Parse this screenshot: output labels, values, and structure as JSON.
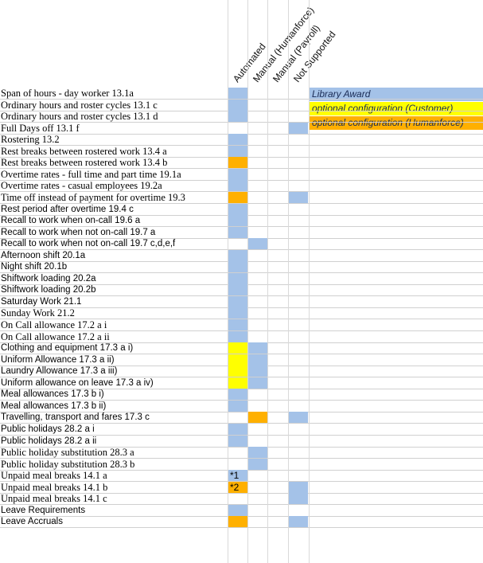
{
  "colors": {
    "blue": "#a4c2e8",
    "yellow": "#ffff00",
    "orange": "#ffb000"
  },
  "headers": [
    "Automated",
    "Manual (Humanforce)",
    "Manual (Payroll)",
    "Not Supported"
  ],
  "legend": [
    {
      "label": "Library Award",
      "color": "blue"
    },
    {
      "label": "optional configuration (Customer)",
      "color": "yellow"
    },
    {
      "label": "optional configuration (Humanforce)",
      "color": "orange"
    }
  ],
  "rows": [
    {
      "label": "Span of hours - day worker 13.1a",
      "font": "serif",
      "cells": [
        "blue",
        null,
        null,
        null
      ]
    },
    {
      "label": "Ordinary hours and roster cycles 13.1 c",
      "font": "serif",
      "cells": [
        "blue",
        null,
        null,
        null
      ]
    },
    {
      "label": "Ordinary hours and roster cycles 13.1 d",
      "font": "serif",
      "cells": [
        "blue",
        null,
        null,
        null
      ]
    },
    {
      "label": "Full Days off 13.1 f",
      "font": "serif",
      "cells": [
        null,
        null,
        null,
        "blue"
      ]
    },
    {
      "label": "Rostering 13.2",
      "font": "serif",
      "cells": [
        "blue",
        null,
        null,
        null
      ]
    },
    {
      "label": "Rest breaks between rostered work 13.4 a",
      "font": "serif",
      "cells": [
        "blue",
        null,
        null,
        null
      ]
    },
    {
      "label": "Rest breaks between rostered work 13.4 b",
      "font": "serif",
      "cells": [
        "orange",
        null,
        null,
        null
      ]
    },
    {
      "label": "Overtime rates - full time and part time 19.1a",
      "font": "serif",
      "cells": [
        "blue",
        null,
        null,
        null
      ]
    },
    {
      "label": "Overtime rates - casual employees 19.2a",
      "font": "serif",
      "cells": [
        "blue",
        null,
        null,
        null
      ]
    },
    {
      "label": "Time off instead of payment for overtime 19.3",
      "font": "serif",
      "cells": [
        "orange",
        null,
        null,
        "blue"
      ]
    },
    {
      "label": "Rest period after overtime 19.4 c",
      "font": "sans",
      "cells": [
        "blue",
        null,
        null,
        null
      ]
    },
    {
      "label": "Recall to work when on-call 19.6 a",
      "font": "sans",
      "cells": [
        "blue",
        null,
        null,
        null
      ]
    },
    {
      "label": "Recall to work when not on-call 19.7 a",
      "font": "sans",
      "cells": [
        "blue",
        null,
        null,
        null
      ]
    },
    {
      "label": "Recall to work when not on-call 19.7 c,d,e,f",
      "font": "sans",
      "cells": [
        null,
        "blue",
        null,
        null
      ]
    },
    {
      "label": "Afternoon shift 20.1a",
      "font": "sans",
      "cells": [
        "blue",
        null,
        null,
        null
      ]
    },
    {
      "label": "Night shift 20.1b",
      "font": "sans",
      "cells": [
        "blue",
        null,
        null,
        null
      ]
    },
    {
      "label": "Shiftwork loading 20.2a",
      "font": "sans",
      "cells": [
        "blue",
        null,
        null,
        null
      ]
    },
    {
      "label": "Shiftwork loading 20.2b",
      "font": "sans",
      "cells": [
        "blue",
        null,
        null,
        null
      ]
    },
    {
      "label": "Saturday Work 21.1",
      "font": "sans",
      "cells": [
        "blue",
        null,
        null,
        null
      ]
    },
    {
      "label": "Sunday Work 21.2",
      "font": "serif",
      "cells": [
        "blue",
        null,
        null,
        null
      ]
    },
    {
      "label": "On Call allowance 17.2 a i",
      "font": "serif",
      "cells": [
        "blue",
        null,
        null,
        null
      ]
    },
    {
      "label": "On Call allowance 17.2 a ii",
      "font": "serif",
      "cells": [
        "blue",
        null,
        null,
        null
      ]
    },
    {
      "label": "Clothing and equipment 17.3 a i)",
      "font": "sans",
      "cells": [
        "yellow",
        "blue",
        null,
        null
      ]
    },
    {
      "label": "Uniform Allowance 17.3 a ii)",
      "font": "sans",
      "cells": [
        "yellow",
        "blue",
        null,
        null
      ]
    },
    {
      "label": "Laundry Allowance 17.3 a iii)",
      "font": "sans",
      "cells": [
        "yellow",
        "blue",
        null,
        null
      ]
    },
    {
      "label": "Uniform allowance on leave 17.3 a iv)",
      "font": "sans",
      "cells": [
        "yellow",
        "blue",
        null,
        null
      ]
    },
    {
      "label": "Meal allowances 17.3 b i)",
      "font": "sans",
      "cells": [
        "blue",
        null,
        null,
        null
      ]
    },
    {
      "label": "Meal allowances 17.3 b ii)",
      "font": "sans",
      "cells": [
        "blue",
        null,
        null,
        null
      ]
    },
    {
      "label": "Travelling, transport and fares 17.3 c",
      "font": "sans",
      "cells": [
        null,
        "orange",
        null,
        "blue"
      ]
    },
    {
      "label": "Public holidays 28.2 a i",
      "font": "sans",
      "cells": [
        "blue",
        null,
        null,
        null
      ]
    },
    {
      "label": "Public holidays 28.2 a ii",
      "font": "sans",
      "cells": [
        "blue",
        null,
        null,
        null
      ]
    },
    {
      "label": "Public holiday substitution 28.3 a",
      "font": "serif",
      "cells": [
        null,
        "blue",
        null,
        null
      ]
    },
    {
      "label": "Public holiday substitution 28.3 b",
      "font": "serif",
      "cells": [
        null,
        "blue",
        null,
        null
      ]
    },
    {
      "label": "Unpaid meal breaks 14.1 a",
      "font": "serif",
      "cells": [
        "blue",
        null,
        null,
        null
      ],
      "note": "*1"
    },
    {
      "label": "Unpaid meal breaks 14.1 b",
      "font": "serif",
      "cells": [
        "orange",
        null,
        null,
        "blue"
      ],
      "note": "*2"
    },
    {
      "label": "Unpaid meal breaks 14.1 c",
      "font": "serif",
      "cells": [
        null,
        null,
        null,
        "blue"
      ]
    },
    {
      "label": "Leave Requirements",
      "font": "sans",
      "cells": [
        "blue",
        null,
        null,
        null
      ]
    },
    {
      "label": "Leave Accruals",
      "font": "sans",
      "cells": [
        "orange",
        null,
        null,
        "blue"
      ]
    }
  ]
}
